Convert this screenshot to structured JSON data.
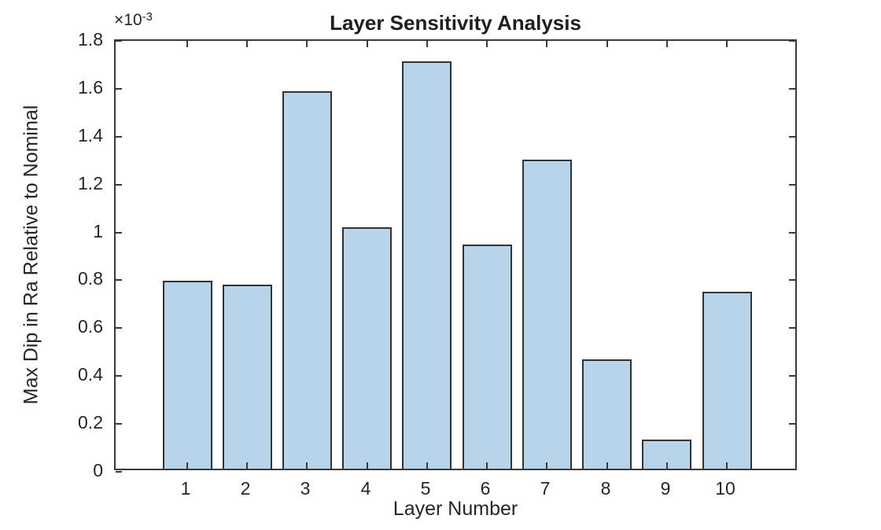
{
  "chart_data": {
    "type": "bar",
    "title": "Layer Sensitivity Analysis",
    "xlabel": "Layer Number",
    "ylabel": "Max Dip in Ra Relative to Nominal",
    "y_exponent_base": "×10",
    "y_exponent_power": "-3",
    "unit_note": "y values are multiples of 10^-3",
    "categories": [
      "1",
      "2",
      "3",
      "4",
      "5",
      "6",
      "7",
      "8",
      "9",
      "10"
    ],
    "values": [
      0.785,
      0.77,
      1.575,
      1.01,
      1.7,
      0.935,
      1.29,
      0.455,
      0.12,
      0.74
    ],
    "ylim": [
      0,
      1.8
    ],
    "ytick_step": 0.2,
    "yticks": [
      "0",
      "0.2",
      "0.4",
      "0.6",
      "0.8",
      "1",
      "1.2",
      "1.4",
      "1.6",
      "1.8"
    ],
    "grid": false,
    "legend": null,
    "bar_fill": "#b8d4ea",
    "bar_edge": "#333333",
    "axis_color": "#3b3b3b",
    "text_color": "#262626"
  }
}
